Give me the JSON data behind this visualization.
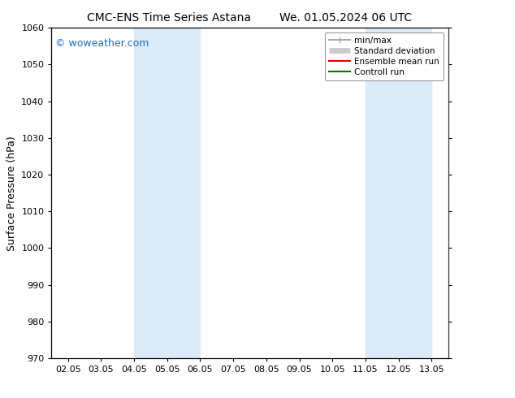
{
  "title_left": "CMC-ENS Time Series Astana",
  "title_right": "We. 01.05.2024 06 UTC",
  "ylabel": "Surface Pressure (hPa)",
  "ylim": [
    970,
    1060
  ],
  "yticks": [
    970,
    980,
    990,
    1000,
    1010,
    1020,
    1030,
    1040,
    1050,
    1060
  ],
  "xtick_labels": [
    "02.05",
    "03.05",
    "04.05",
    "05.05",
    "06.05",
    "07.05",
    "08.05",
    "09.05",
    "10.05",
    "11.05",
    "12.05",
    "13.05"
  ],
  "xtick_positions": [
    0,
    1,
    2,
    3,
    4,
    5,
    6,
    7,
    8,
    9,
    10,
    11
  ],
  "xlim": [
    -0.5,
    11.5
  ],
  "shaded_regions": [
    {
      "x_start": 2,
      "x_end": 4,
      "color": "#daeaf8"
    },
    {
      "x_start": 9,
      "x_end": 11,
      "color": "#daeaf8"
    }
  ],
  "watermark_text": "© woweather.com",
  "watermark_color": "#1a6fc4",
  "background_color": "#ffffff",
  "legend_entries": [
    {
      "label": "min/max",
      "color": "#aaaaaa",
      "lw": 1.5
    },
    {
      "label": "Standard deviation",
      "color": "#cccccc",
      "lw": 5
    },
    {
      "label": "Ensemble mean run",
      "color": "#dd0000",
      "lw": 1.5
    },
    {
      "label": "Controll run",
      "color": "#007700",
      "lw": 1.5
    }
  ],
  "font_family": "DejaVu Sans",
  "title_fontsize": 10,
  "tick_fontsize": 8,
  "legend_fontsize": 7.5,
  "ylabel_fontsize": 9,
  "watermark_fontsize": 9
}
